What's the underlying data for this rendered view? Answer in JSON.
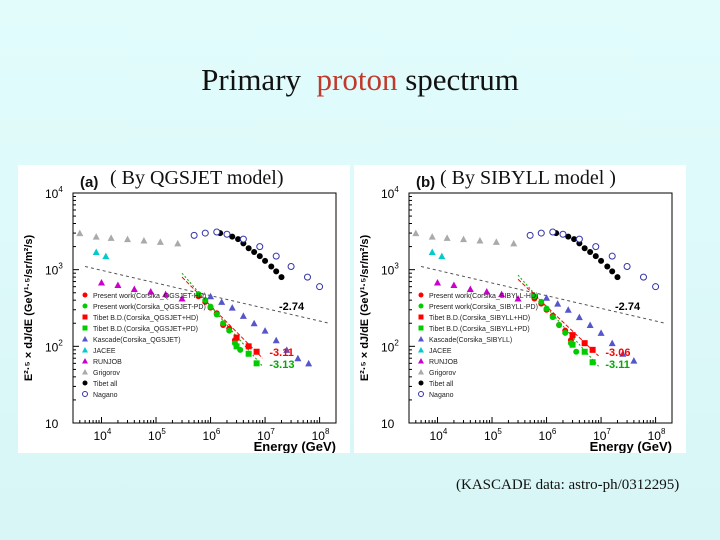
{
  "title": {
    "part1": "Primary",
    "part2": "proton",
    "part3": "spectrum",
    "highlight_color": "#c0392b"
  },
  "credit": "(KASCADE data: astro-ph/0312295)",
  "chart_data": [
    {
      "type": "scatter",
      "panel_letter": "(a)",
      "model_label": "( By QGSJET model)",
      "xlabel": "Energy (GeV)",
      "ylabel": "E²·⁵ × dJ/dE (GeV¹·⁵/sr/m²/s)",
      "xscale": "log",
      "yscale": "log",
      "xlim": [
        3000,
        200000000
      ],
      "ylim": [
        10,
        10000
      ],
      "x_ticks": [
        {
          "v": 10000,
          "b": "10",
          "e": "4"
        },
        {
          "v": 100000,
          "b": "10",
          "e": "5"
        },
        {
          "v": 1000000,
          "b": "10",
          "e": "6"
        },
        {
          "v": 10000000,
          "b": "10",
          "e": "7"
        },
        {
          "v": 100000000,
          "b": "10",
          "e": "8"
        }
      ],
      "y_ticks": [
        {
          "v": 10,
          "b": "10",
          "e": ""
        },
        {
          "v": 100,
          "b": "10",
          "e": "2"
        },
        {
          "v": 1000,
          "b": "10",
          "e": "3"
        },
        {
          "v": 10000,
          "b": "10",
          "e": "4"
        }
      ],
      "legend_position": "bottom-left",
      "annotations": [
        {
          "text": "-2.74",
          "x": 18000000,
          "y": 300,
          "color": "#000000"
        },
        {
          "text": "-3.11",
          "x": 12000000,
          "y": 75,
          "color": "#ff0000"
        },
        {
          "text": "-3.13",
          "x": 12000000,
          "y": 52,
          "color": "#00aa00"
        }
      ],
      "fit_lines": [
        {
          "color": "#555555",
          "dash": "3,3",
          "x": [
            5000,
            150000000
          ],
          "y": [
            1100,
            200
          ]
        },
        {
          "color": "#ff0000",
          "dash": "4,2",
          "x": [
            300000,
            9000000
          ],
          "y": [
            800,
            70
          ]
        },
        {
          "color": "#00aa00",
          "dash": "2,2",
          "x": [
            300000,
            9000000
          ],
          "y": [
            900,
            55
          ]
        }
      ],
      "series": [
        {
          "name": "Present work(Corsika_QGSJET-HD)",
          "color": "#ff0000",
          "marker": "circle",
          "x": [
            600000,
            800000,
            1000000,
            1300000,
            1700000,
            2200000,
            2800000
          ],
          "y": [
            450,
            380,
            320,
            270,
            190,
            170,
            120
          ]
        },
        {
          "name": "Present work(Corsika_QGSJET-PD)",
          "color": "#00cc00",
          "marker": "circle",
          "x": [
            600000,
            800000,
            1000000,
            1300000,
            1700000,
            2200000,
            2800000,
            3500000
          ],
          "y": [
            480,
            400,
            330,
            260,
            200,
            160,
            110,
            90
          ]
        },
        {
          "name": "Tibet B.D.(Corsika_QGSJET+HD)",
          "color": "#ff0000",
          "marker": "square",
          "x": [
            3000000,
            5000000,
            7000000
          ],
          "y": [
            130,
            100,
            85
          ]
        },
        {
          "name": "Tibet B.D.(Corsika_QGSJET+PD)",
          "color": "#00cc00",
          "marker": "square",
          "x": [
            3000000,
            5000000,
            7000000
          ],
          "y": [
            100,
            80,
            60
          ]
        },
        {
          "name": "Kascade(Corsika_QGSJET)",
          "color": "#5555cc",
          "marker": "triangle",
          "x": [
            1000000,
            1600000,
            2500000,
            4000000,
            6300000,
            10000000,
            16000000,
            25000000,
            40000000,
            63000000
          ],
          "y": [
            450,
            380,
            320,
            250,
            200,
            160,
            120,
            90,
            70,
            60
          ]
        },
        {
          "name": "JACEE",
          "color": "#00cccc",
          "marker": "triangle",
          "x": [
            8000,
            12000
          ],
          "y": [
            1700,
            1500
          ]
        },
        {
          "name": "RUNJOB",
          "color": "#cc00cc",
          "marker": "triangle",
          "x": [
            10000,
            20000,
            40000,
            80000,
            150000,
            300000
          ],
          "y": [
            680,
            630,
            560,
            520,
            480,
            420
          ]
        },
        {
          "name": "Grigorov",
          "color": "#aaaaaa",
          "marker": "triangle",
          "x": [
            4000,
            8000,
            15000,
            30000,
            60000,
            120000,
            250000
          ],
          "y": [
            3000,
            2700,
            2600,
            2500,
            2400,
            2300,
            2200
          ]
        },
        {
          "name": "Tibet all",
          "color": "#000000",
          "marker": "circle",
          "x": [
            1500000,
            2000000,
            2500000,
            3200000,
            4000000,
            5000000,
            6300000,
            8000000,
            10000000,
            13000000,
            16000000,
            20000000
          ],
          "y": [
            3000,
            2900,
            2700,
            2500,
            2200,
            1900,
            1700,
            1500,
            1300,
            1100,
            950,
            800
          ]
        },
        {
          "name": "Nagano",
          "color": "#3333aa",
          "marker": "open-circle",
          "x": [
            500000,
            800000,
            1300000,
            2000000,
            4000000,
            8000000,
            16000000,
            30000000,
            60000000,
            100000000
          ],
          "y": [
            2800,
            3000,
            3100,
            2900,
            2500,
            2000,
            1500,
            1100,
            800,
            600
          ]
        }
      ]
    },
    {
      "type": "scatter",
      "panel_letter": "(b)",
      "model_label": "( By SIBYLL model )",
      "xlabel": "Energy (GeV)",
      "ylabel": "E²·⁵ × dJ/dE (GeV¹·⁵/sr/m²/s)",
      "xscale": "log",
      "yscale": "log",
      "xlim": [
        3000,
        200000000
      ],
      "ylim": [
        10,
        10000
      ],
      "x_ticks": [
        {
          "v": 10000,
          "b": "10",
          "e": "4"
        },
        {
          "v": 100000,
          "b": "10",
          "e": "5"
        },
        {
          "v": 1000000,
          "b": "10",
          "e": "6"
        },
        {
          "v": 10000000,
          "b": "10",
          "e": "7"
        },
        {
          "v": 100000000,
          "b": "10",
          "e": "8"
        }
      ],
      "y_ticks": [
        {
          "v": 10,
          "b": "10",
          "e": ""
        },
        {
          "v": 100,
          "b": "10",
          "e": "2"
        },
        {
          "v": 1000,
          "b": "10",
          "e": "3"
        },
        {
          "v": 10000,
          "b": "10",
          "e": "4"
        }
      ],
      "legend_position": "bottom-left",
      "annotations": [
        {
          "text": "-2.74",
          "x": 18000000,
          "y": 300,
          "color": "#000000"
        },
        {
          "text": "-3.06",
          "x": 12000000,
          "y": 75,
          "color": "#ff0000"
        },
        {
          "text": "-3.11",
          "x": 12000000,
          "y": 52,
          "color": "#00aa00"
        }
      ],
      "fit_lines": [
        {
          "color": "#555555",
          "dash": "3,3",
          "x": [
            5000,
            150000000
          ],
          "y": [
            1100,
            200
          ]
        },
        {
          "color": "#ff0000",
          "dash": "4,2",
          "x": [
            300000,
            9000000
          ],
          "y": [
            750,
            75
          ]
        },
        {
          "color": "#00aa00",
          "dash": "2,2",
          "x": [
            300000,
            9000000
          ],
          "y": [
            850,
            55
          ]
        }
      ],
      "series": [
        {
          "name": "Present work(Corsika_SIBYLL-HD)",
          "color": "#ff0000",
          "marker": "circle",
          "x": [
            600000,
            800000,
            1000000,
            1300000,
            1700000,
            2200000,
            2800000
          ],
          "y": [
            420,
            360,
            300,
            250,
            190,
            160,
            120
          ]
        },
        {
          "name": "Present work(Corsika_SIBYLL-PD)",
          "color": "#00cc00",
          "marker": "circle",
          "x": [
            600000,
            800000,
            1000000,
            1300000,
            1700000,
            2200000,
            2800000,
            3500000
          ],
          "y": [
            450,
            380,
            310,
            240,
            190,
            150,
            110,
            85
          ]
        },
        {
          "name": "Tibet B.D.(Corsika_SIBYLL+HD)",
          "color": "#ff0000",
          "marker": "square",
          "x": [
            3000000,
            5000000,
            7000000
          ],
          "y": [
            140,
            110,
            90
          ]
        },
        {
          "name": "Tibet B.D.(Corsika_SIBYLL+PD)",
          "color": "#00cc00",
          "marker": "square",
          "x": [
            3000000,
            5000000,
            7000000
          ],
          "y": [
            105,
            85,
            62
          ]
        },
        {
          "name": "Kascade(Corsika_SIBYLL)",
          "color": "#5555cc",
          "marker": "triangle",
          "x": [
            1000000,
            1600000,
            2500000,
            4000000,
            6300000,
            10000000,
            16000000,
            25000000,
            40000000
          ],
          "y": [
            430,
            360,
            300,
            240,
            190,
            150,
            110,
            80,
            65
          ]
        },
        {
          "name": "JACEE",
          "color": "#00cccc",
          "marker": "triangle",
          "x": [
            8000,
            12000
          ],
          "y": [
            1700,
            1500
          ]
        },
        {
          "name": "RUNJOB",
          "color": "#cc00cc",
          "marker": "triangle",
          "x": [
            10000,
            20000,
            40000,
            80000,
            150000,
            300000
          ],
          "y": [
            680,
            630,
            560,
            520,
            480,
            420
          ]
        },
        {
          "name": "Grigorov",
          "color": "#aaaaaa",
          "marker": "triangle",
          "x": [
            4000,
            8000,
            15000,
            30000,
            60000,
            120000,
            250000
          ],
          "y": [
            3000,
            2700,
            2600,
            2500,
            2400,
            2300,
            2200
          ]
        },
        {
          "name": "Tibet all",
          "color": "#000000",
          "marker": "circle",
          "x": [
            1500000,
            2000000,
            2500000,
            3200000,
            4000000,
            5000000,
            6300000,
            8000000,
            10000000,
            13000000,
            16000000,
            20000000
          ],
          "y": [
            3000,
            2900,
            2700,
            2500,
            2200,
            1900,
            1700,
            1500,
            1300,
            1100,
            950,
            800
          ]
        },
        {
          "name": "Nagano",
          "color": "#3333aa",
          "marker": "open-circle",
          "x": [
            500000,
            800000,
            1300000,
            2000000,
            4000000,
            8000000,
            16000000,
            30000000,
            60000000,
            100000000
          ],
          "y": [
            2800,
            3000,
            3100,
            2900,
            2500,
            2000,
            1500,
            1100,
            800,
            600
          ]
        }
      ]
    }
  ]
}
